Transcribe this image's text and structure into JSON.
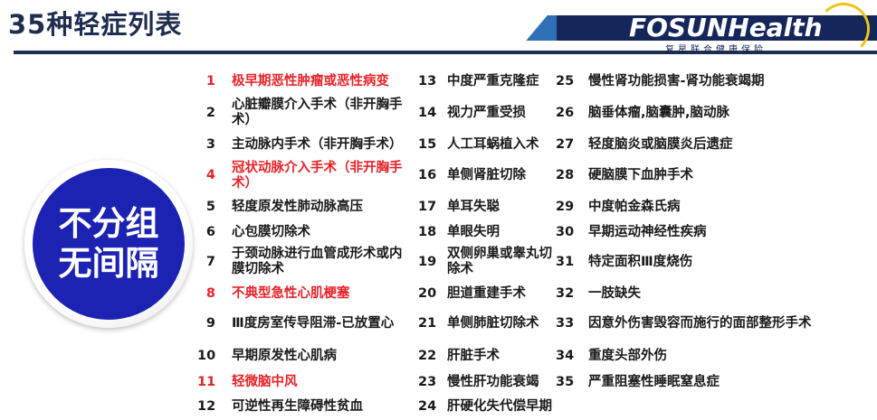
{
  "title": "35种轻症列表",
  "logo": {
    "brand": "FOSUNHealth",
    "subtitle": "复星联合健康保险",
    "colors": {
      "band": "#15265a",
      "accent": "#2f6fb8",
      "ring": "#f0c419"
    }
  },
  "badge": {
    "line1": "不分组",
    "line2": "无间隔",
    "color": "#1c22b2"
  },
  "highlight_color": "#e8232a",
  "columns": [
    [
      {
        "num": "1",
        "text": "极早期恶性肿瘤或恶性病变",
        "red": true
      },
      {
        "num": "2",
        "text": "心脏瓣膜介入手术（非开胸手术）",
        "red": false
      },
      {
        "num": "3",
        "text": "主动脉内手术（非开胸手术）",
        "red": false
      },
      {
        "num": "4",
        "text": "冠状动脉介入手术（非开胸手术）",
        "red": true
      },
      {
        "num": "5",
        "text": "轻度原发性肺动脉高压",
        "red": false
      },
      {
        "num": "6",
        "text": "心包膜切除术",
        "red": false
      },
      {
        "num": "7",
        "text": "于颈动脉进行血管成形术或内膜切除术",
        "red": false
      },
      {
        "num": "8",
        "text": "不典型急性心肌梗塞",
        "red": true
      },
      {
        "num": "9",
        "text": "Ⅲ度房室传导阻滞-已放置心",
        "red": false
      },
      {
        "num": "10",
        "text": "早期原发性心肌病",
        "red": false
      },
      {
        "num": "11",
        "text": "轻微脑中风",
        "red": true
      },
      {
        "num": "12",
        "text": "可逆性再生障碍性贫血",
        "red": false
      }
    ],
    [
      {
        "num": "13",
        "text": "中度严重克隆症",
        "red": false
      },
      {
        "num": "14",
        "text": "视力严重受损",
        "red": false
      },
      {
        "num": "15",
        "text": "人工耳蜗植入术",
        "red": false
      },
      {
        "num": "16",
        "text": "单侧肾脏切除",
        "red": false
      },
      {
        "num": "17",
        "text": "单耳失聪",
        "red": false
      },
      {
        "num": "18",
        "text": "单眼失明",
        "red": false
      },
      {
        "num": "19",
        "text": "双侧卵巢或睾丸切除术",
        "red": false
      },
      {
        "num": "20",
        "text": "胆道重建手术",
        "red": false
      },
      {
        "num": "21",
        "text": "单侧肺脏切除术",
        "red": false
      },
      {
        "num": "22",
        "text": "肝脏手术",
        "red": false
      },
      {
        "num": "23",
        "text": "慢性肝功能衰竭",
        "red": false
      },
      {
        "num": "24",
        "text": "肝硬化失代偿早期",
        "red": false
      }
    ],
    [
      {
        "num": "25",
        "text": "慢性肾功能损害-肾功能衰竭期",
        "red": false
      },
      {
        "num": "26",
        "text": "脑垂体瘤,脑囊肿,脑动脉",
        "red": false
      },
      {
        "num": "27",
        "text": "轻度脑炎或脑膜炎后遗症",
        "red": false
      },
      {
        "num": "28",
        "text": "硬脑膜下血肿手术",
        "red": false
      },
      {
        "num": "29",
        "text": "中度帕金森氏病",
        "red": false
      },
      {
        "num": "30",
        "text": "早期运动神经性疾病",
        "red": false
      },
      {
        "num": "31",
        "text": "特定面积Ⅲ度烧伤",
        "red": false
      },
      {
        "num": "32",
        "text": "一肢缺失",
        "red": false
      },
      {
        "num": "33",
        "text": "因意外伤害毁容而施行的面部整形手术",
        "red": false
      },
      {
        "num": "34",
        "text": "重度头部外伤",
        "red": false
      },
      {
        "num": "35",
        "text": "严重阻塞性睡眠窒息症",
        "red": false
      }
    ]
  ]
}
